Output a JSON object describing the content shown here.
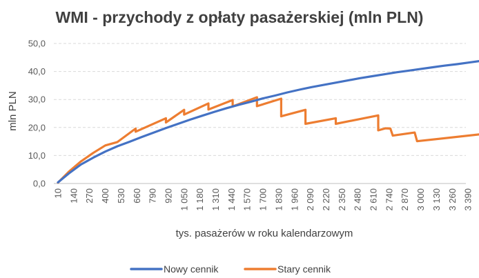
{
  "chart_data": {
    "type": "line",
    "title": "WMI - przychody z opłaty pasażerskiej (mln PLN)",
    "xlabel": "tys. pasażerów w roku kalendarzowym",
    "ylabel": "mln PLN",
    "ylim": [
      0,
      50
    ],
    "yticks": [
      "0,0",
      "10,0",
      "20,0",
      "30,0",
      "40,0",
      "50,0"
    ],
    "xlim": [
      10,
      3500
    ],
    "xticks": [
      "10",
      "140",
      "270",
      "400",
      "530",
      "660",
      "790",
      "920",
      "1 050",
      "1 180",
      "1 310",
      "1 440",
      "1 570",
      "1 700",
      "1 830",
      "1 960",
      "2 090",
      "2 220",
      "2 350",
      "2 480",
      "2 610",
      "2 740",
      "2 870",
      "3 000",
      "3 130",
      "3 260",
      "3 390"
    ],
    "grid": "horizontal dashed",
    "legend_position": "bottom",
    "series": [
      {
        "name": "Nowy cennik",
        "color": "#4472C4",
        "points": [
          [
            10,
            0.4
          ],
          [
            100,
            3.6
          ],
          [
            200,
            6.8
          ],
          [
            300,
            9.2
          ],
          [
            400,
            11.4
          ],
          [
            500,
            13.3
          ],
          [
            600,
            14.9
          ],
          [
            700,
            16.6
          ],
          [
            800,
            18.2
          ],
          [
            900,
            19.8
          ],
          [
            1000,
            21.3
          ],
          [
            1100,
            22.8
          ],
          [
            1200,
            24.2
          ],
          [
            1300,
            25.6
          ],
          [
            1400,
            26.9
          ],
          [
            1500,
            28.1
          ],
          [
            1600,
            29.2
          ],
          [
            1700,
            30.4
          ],
          [
            1800,
            31.4
          ],
          [
            1900,
            32.5
          ],
          [
            2000,
            33.5
          ],
          [
            2100,
            34.4
          ],
          [
            2200,
            35.2
          ],
          [
            2300,
            36.0
          ],
          [
            2400,
            36.8
          ],
          [
            2500,
            37.6
          ],
          [
            2600,
            38.3
          ],
          [
            2700,
            39.0
          ],
          [
            2800,
            39.7
          ],
          [
            2900,
            40.3
          ],
          [
            3000,
            40.9
          ],
          [
            3100,
            41.5
          ],
          [
            3200,
            42.1
          ],
          [
            3300,
            42.6
          ],
          [
            3400,
            43.2
          ],
          [
            3500,
            43.8
          ]
        ]
      },
      {
        "name": "Stary cennik",
        "color": "#ED7D31",
        "points": [
          [
            10,
            0.3
          ],
          [
            100,
            4.2
          ],
          [
            200,
            7.9
          ],
          [
            300,
            10.9
          ],
          [
            400,
            13.6
          ],
          [
            500,
            14.8
          ],
          [
            500,
            14.8
          ],
          [
            650,
            19.6
          ],
          [
            650,
            18.5
          ],
          [
            900,
            23.3
          ],
          [
            900,
            21.8
          ],
          [
            1050,
            26.3
          ],
          [
            1050,
            24.6
          ],
          [
            1250,
            28.6
          ],
          [
            1250,
            26.4
          ],
          [
            1450,
            29.8
          ],
          [
            1450,
            27.5
          ],
          [
            1650,
            30.8
          ],
          [
            1650,
            27.6
          ],
          [
            1850,
            30.3
          ],
          [
            1850,
            24.0
          ],
          [
            2050,
            26.3
          ],
          [
            2050,
            21.3
          ],
          [
            2300,
            23.3
          ],
          [
            2300,
            21.3
          ],
          [
            2650,
            24.3
          ],
          [
            2650,
            19.0
          ],
          [
            2710,
            19.7
          ],
          [
            2750,
            19.6
          ],
          [
            2770,
            17.1
          ],
          [
            2950,
            18.2
          ],
          [
            2970,
            15.1
          ],
          [
            3500,
            17.6
          ]
        ]
      }
    ]
  }
}
